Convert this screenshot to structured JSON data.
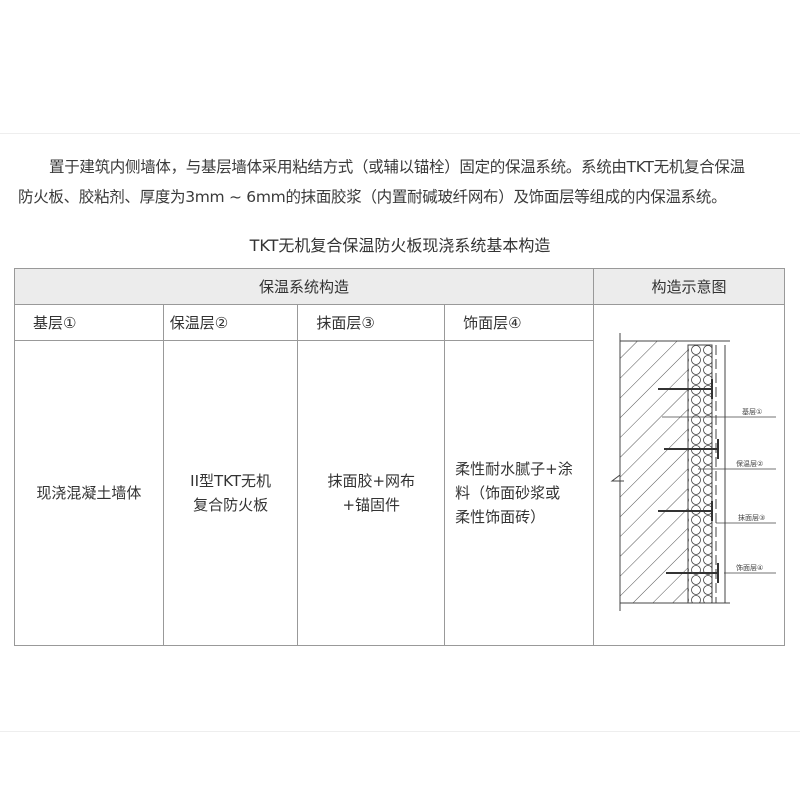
{
  "intro": {
    "line1": "置于建筑内侧墙体，与基层墙体采用粘结方式（或辅以锚栓）固定的保温系统。系统由TKT无机复合保温",
    "line2": "防火板、胶粘剂、厚度为3mm ~ 6mm的抹面胶浆（内置耐碱玻纤网布）及饰面层等组成的内保温系统。"
  },
  "table_title": "TKT无机复合保温防火板现浇系统基本构造",
  "table": {
    "header_structure": "保温系统构造",
    "header_diagram": "构造示意图",
    "columns": [
      "基层①",
      "保温层②",
      "抹面层③",
      "饰面层④"
    ],
    "cells": [
      "现浇混凝土墙体",
      "II型TKT无机\n复合防火板",
      "抹面胶+网布\n+锚固件",
      "柔性耐水腻子+涂\n料（饰面砂浆或\n柔性饰面砖）"
    ],
    "diagram_labels": [
      "基层①",
      "保温层②",
      "抹面层③",
      "饰面层④"
    ]
  }
}
